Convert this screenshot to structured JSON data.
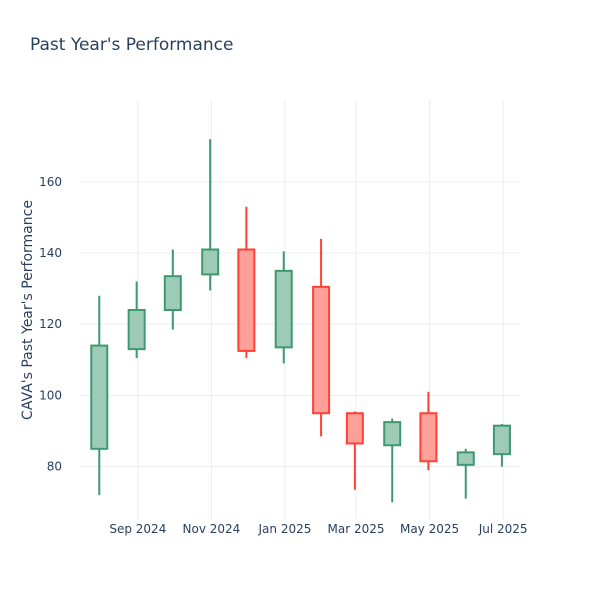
{
  "chart_data": {
    "type": "candlestick",
    "title": "Past Year's Performance",
    "xlabel": "",
    "ylabel": "CAVA's Past Year's Performance",
    "ylim": [
      65,
      183
    ],
    "y_ticks": [
      80,
      100,
      120,
      140,
      160
    ],
    "x_ticks": [
      {
        "label": "Sep 2024",
        "date": "2024-09-01"
      },
      {
        "label": "Nov 2024",
        "date": "2024-11-01"
      },
      {
        "label": "Jan 2025",
        "date": "2025-01-01"
      },
      {
        "label": "Mar 2025",
        "date": "2025-03-01"
      },
      {
        "label": "May 2025",
        "date": "2025-05-01"
      },
      {
        "label": "Jul 2025",
        "date": "2025-07-01"
      }
    ],
    "grid": true,
    "colors": {
      "increasing": "#3d9970",
      "decreasing": "#ff4136",
      "increasing_fill": "#9ecbb7",
      "decreasing_fill": "#ff9f9a"
    },
    "candles": [
      {
        "date": "2024-07-31",
        "open": 85.0,
        "high": 128.0,
        "low": 72.0,
        "close": 114.0
      },
      {
        "date": "2024-08-31",
        "open": 113.0,
        "high": 132.0,
        "low": 110.5,
        "close": 124.0
      },
      {
        "date": "2024-09-30",
        "open": 124.0,
        "high": 141.0,
        "low": 118.5,
        "close": 133.5
      },
      {
        "date": "2024-10-31",
        "open": 134.0,
        "high": 172.0,
        "low": 129.5,
        "close": 141.0
      },
      {
        "date": "2024-11-30",
        "open": 141.0,
        "high": 153.0,
        "low": 110.5,
        "close": 112.5
      },
      {
        "date": "2024-12-31",
        "open": 113.5,
        "high": 140.5,
        "low": 109.0,
        "close": 135.0
      },
      {
        "date": "2025-01-31",
        "open": 130.5,
        "high": 144.0,
        "low": 88.5,
        "close": 95.0
      },
      {
        "date": "2025-02-28",
        "open": 95.0,
        "high": 95.5,
        "low": 73.5,
        "close": 86.5
      },
      {
        "date": "2025-03-31",
        "open": 86.0,
        "high": 93.5,
        "low": 70.0,
        "close": 92.5
      },
      {
        "date": "2025-04-30",
        "open": 95.0,
        "high": 101.0,
        "low": 79.0,
        "close": 81.5
      },
      {
        "date": "2025-05-31",
        "open": 80.5,
        "high": 85.0,
        "low": 71.0,
        "close": 84.0
      },
      {
        "date": "2025-06-30",
        "open": 83.5,
        "high": 92.0,
        "low": 80.0,
        "close": 91.5
      }
    ]
  }
}
